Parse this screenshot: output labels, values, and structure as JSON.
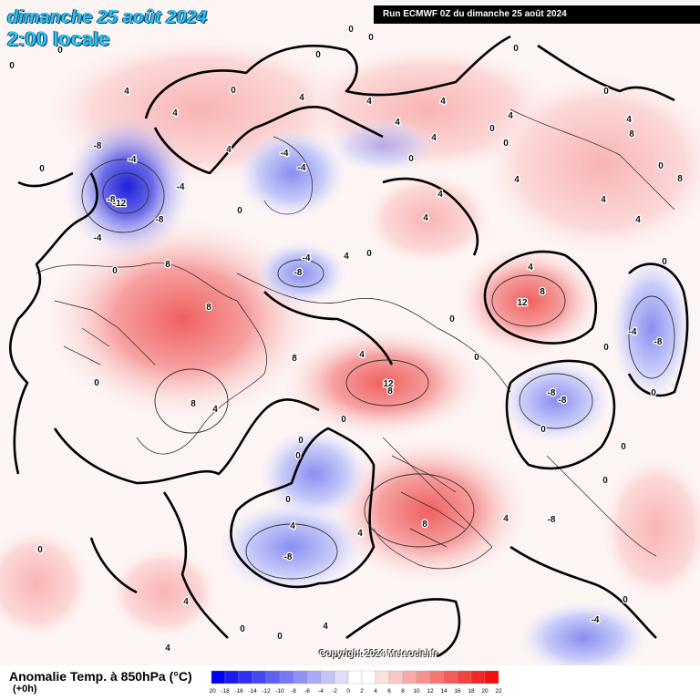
{
  "header": {
    "date": "dimanche 25 août 2024",
    "local_time": "2:00 locale",
    "run_info": "Run ECMWF 0Z du dimanche 25 août 2024"
  },
  "footer": {
    "variable_title": "Anomalie Temp. à 850hPa (°C)",
    "forecast_offset": "(+0h)",
    "copyright": "Copyright 2024 Meteociel.fr"
  },
  "legend": {
    "ticks": [
      "-20",
      "-18",
      "-16",
      "-14",
      "-12",
      "-10",
      "-8",
      "-6",
      "-4",
      "-2",
      "0",
      "2",
      "4",
      "6",
      "8",
      "10",
      "12",
      "14",
      "16",
      "18",
      "20",
      "22"
    ],
    "colors": [
      "#0000f0",
      "#1a1af2",
      "#3030f0",
      "#4848f2",
      "#6060f2",
      "#7878f4",
      "#9090f6",
      "#aaaaf8",
      "#c4c4fa",
      "#dedefc",
      "#ffffff",
      "#ffffff",
      "#fde0e0",
      "#fcc6c6",
      "#faaaaa",
      "#f89090",
      "#f67676",
      "#f45c5c",
      "#f24242",
      "#f22828",
      "#f21010"
    ]
  },
  "map_labels": [
    {
      "text": "0",
      "pos": [
        385,
        35
      ]
    },
    {
      "text": "0",
      "pos": [
        407,
        44
      ]
    },
    {
      "text": "0",
      "pos": [
        13,
        75
      ]
    },
    {
      "text": "0",
      "pos": [
        66,
        58
      ]
    },
    {
      "text": "0",
      "pos": [
        349,
        63
      ]
    },
    {
      "text": "0",
      "pos": [
        566,
        56
      ]
    },
    {
      "text": "4",
      "pos": [
        139,
        103
      ]
    },
    {
      "text": "0",
      "pos": [
        256,
        102
      ]
    },
    {
      "text": "0",
      "pos": [
        665,
        103
      ]
    },
    {
      "text": "4",
      "pos": [
        192,
        127
      ]
    },
    {
      "text": "4",
      "pos": [
        405,
        114
      ]
    },
    {
      "text": "4",
      "pos": [
        436,
        137
      ]
    },
    {
      "text": "4",
      "pos": [
        331,
        110
      ]
    },
    {
      "text": "4",
      "pos": [
        486,
        114
      ]
    },
    {
      "text": "4",
      "pos": [
        560,
        130
      ]
    },
    {
      "text": "4",
      "pos": [
        690,
        134
      ]
    },
    {
      "text": "-8",
      "pos": [
        107,
        163
      ]
    },
    {
      "text": "-4",
      "pos": [
        145,
        178
      ]
    },
    {
      "text": "4",
      "pos": [
        251,
        167
      ]
    },
    {
      "text": "0",
      "pos": [
        451,
        177
      ]
    },
    {
      "text": "4",
      "pos": [
        476,
        154
      ]
    },
    {
      "text": "0",
      "pos": [
        540,
        144
      ]
    },
    {
      "text": "0",
      "pos": [
        555,
        160
      ]
    },
    {
      "text": "8",
      "pos": [
        693,
        150
      ]
    },
    {
      "text": "0",
      "pos": [
        725,
        185
      ]
    },
    {
      "text": "0",
      "pos": [
        46,
        188
      ]
    },
    {
      "text": "-4",
      "pos": [
        198,
        208
      ]
    },
    {
      "text": "-4",
      "pos": [
        312,
        171
      ]
    },
    {
      "text": "-4",
      "pos": [
        331,
        187
      ]
    },
    {
      "text": "4",
      "pos": [
        483,
        216
      ]
    },
    {
      "text": "4",
      "pos": [
        567,
        200
      ]
    },
    {
      "text": "-8",
      "pos": [
        122,
        222
      ]
    },
    {
      "text": "-12",
      "pos": [
        131,
        226
      ]
    },
    {
      "text": "-8",
      "pos": [
        175,
        244
      ]
    },
    {
      "text": "-4",
      "pos": [
        107,
        264
      ]
    },
    {
      "text": "4",
      "pos": [
        467,
        242
      ]
    },
    {
      "text": "0",
      "pos": [
        263,
        234
      ]
    },
    {
      "text": "8",
      "pos": [
        746,
        199
      ]
    },
    {
      "text": "4",
      "pos": [
        662,
        222
      ]
    },
    {
      "text": "4",
      "pos": [
        700,
        244
      ]
    },
    {
      "text": "-4",
      "pos": [
        336,
        286
      ]
    },
    {
      "text": "-8",
      "pos": [
        327,
        302
      ]
    },
    {
      "text": "0",
      "pos": [
        405,
        281
      ]
    },
    {
      "text": "4",
      "pos": [
        380,
        284
      ]
    },
    {
      "text": "8",
      "pos": [
        184,
        293
      ]
    },
    {
      "text": "0",
      "pos": [
        126,
        300
      ]
    },
    {
      "text": "4",
      "pos": [
        582,
        296
      ]
    },
    {
      "text": "8",
      "pos": [
        595,
        323
      ]
    },
    {
      "text": "12",
      "pos": [
        573,
        335
      ]
    },
    {
      "text": "0",
      "pos": [
        729,
        290
      ]
    },
    {
      "text": "8",
      "pos": [
        229,
        340
      ]
    },
    {
      "text": "-4",
      "pos": [
        694,
        367
      ]
    },
    {
      "text": "-8",
      "pos": [
        722,
        378
      ]
    },
    {
      "text": "0",
      "pos": [
        496,
        353
      ]
    },
    {
      "text": "0",
      "pos": [
        665,
        384
      ]
    },
    {
      "text": "8",
      "pos": [
        323,
        396
      ]
    },
    {
      "text": "4",
      "pos": [
        397,
        392
      ]
    },
    {
      "text": "12",
      "pos": [
        426,
        424
      ]
    },
    {
      "text": "8",
      "pos": [
        428,
        432
      ]
    },
    {
      "text": "0",
      "pos": [
        523,
        395
      ]
    },
    {
      "text": "0",
      "pos": [
        106,
        423
      ]
    },
    {
      "text": "8",
      "pos": [
        212,
        446
      ]
    },
    {
      "text": "4",
      "pos": [
        236,
        452
      ]
    },
    {
      "text": "-8",
      "pos": [
        605,
        434
      ]
    },
    {
      "text": "-8",
      "pos": [
        617,
        442
      ]
    },
    {
      "text": "0",
      "pos": [
        377,
        463
      ]
    },
    {
      "text": "0",
      "pos": [
        596,
        474
      ]
    },
    {
      "text": "0",
      "pos": [
        717,
        434
      ]
    },
    {
      "text": "0",
      "pos": [
        330,
        486
      ]
    },
    {
      "text": "0",
      "pos": [
        684,
        493
      ]
    },
    {
      "text": "0",
      "pos": [
        327,
        503
      ]
    },
    {
      "text": "0",
      "pos": [
        664,
        530
      ]
    },
    {
      "text": "0",
      "pos": [
        316,
        551
      ]
    },
    {
      "text": "4",
      "pos": [
        321,
        580
      ]
    },
    {
      "text": "4",
      "pos": [
        395,
        588
      ]
    },
    {
      "text": "8",
      "pos": [
        466,
        578
      ]
    },
    {
      "text": "-8",
      "pos": [
        605,
        573
      ]
    },
    {
      "text": "4",
      "pos": [
        555,
        572
      ]
    },
    {
      "text": "0",
      "pos": [
        44,
        606
      ]
    },
    {
      "text": "-8",
      "pos": [
        316,
        614
      ]
    },
    {
      "text": "4",
      "pos": [
        204,
        663
      ]
    },
    {
      "text": "0",
      "pos": [
        686,
        661
      ]
    },
    {
      "text": "-4",
      "pos": [
        653,
        683
      ]
    },
    {
      "text": "0",
      "pos": [
        266,
        693
      ]
    },
    {
      "text": "0",
      "pos": [
        307,
        701
      ]
    },
    {
      "text": "4",
      "pos": [
        184,
        714
      ]
    },
    {
      "text": "4",
      "pos": [
        357,
        690
      ]
    }
  ]
}
